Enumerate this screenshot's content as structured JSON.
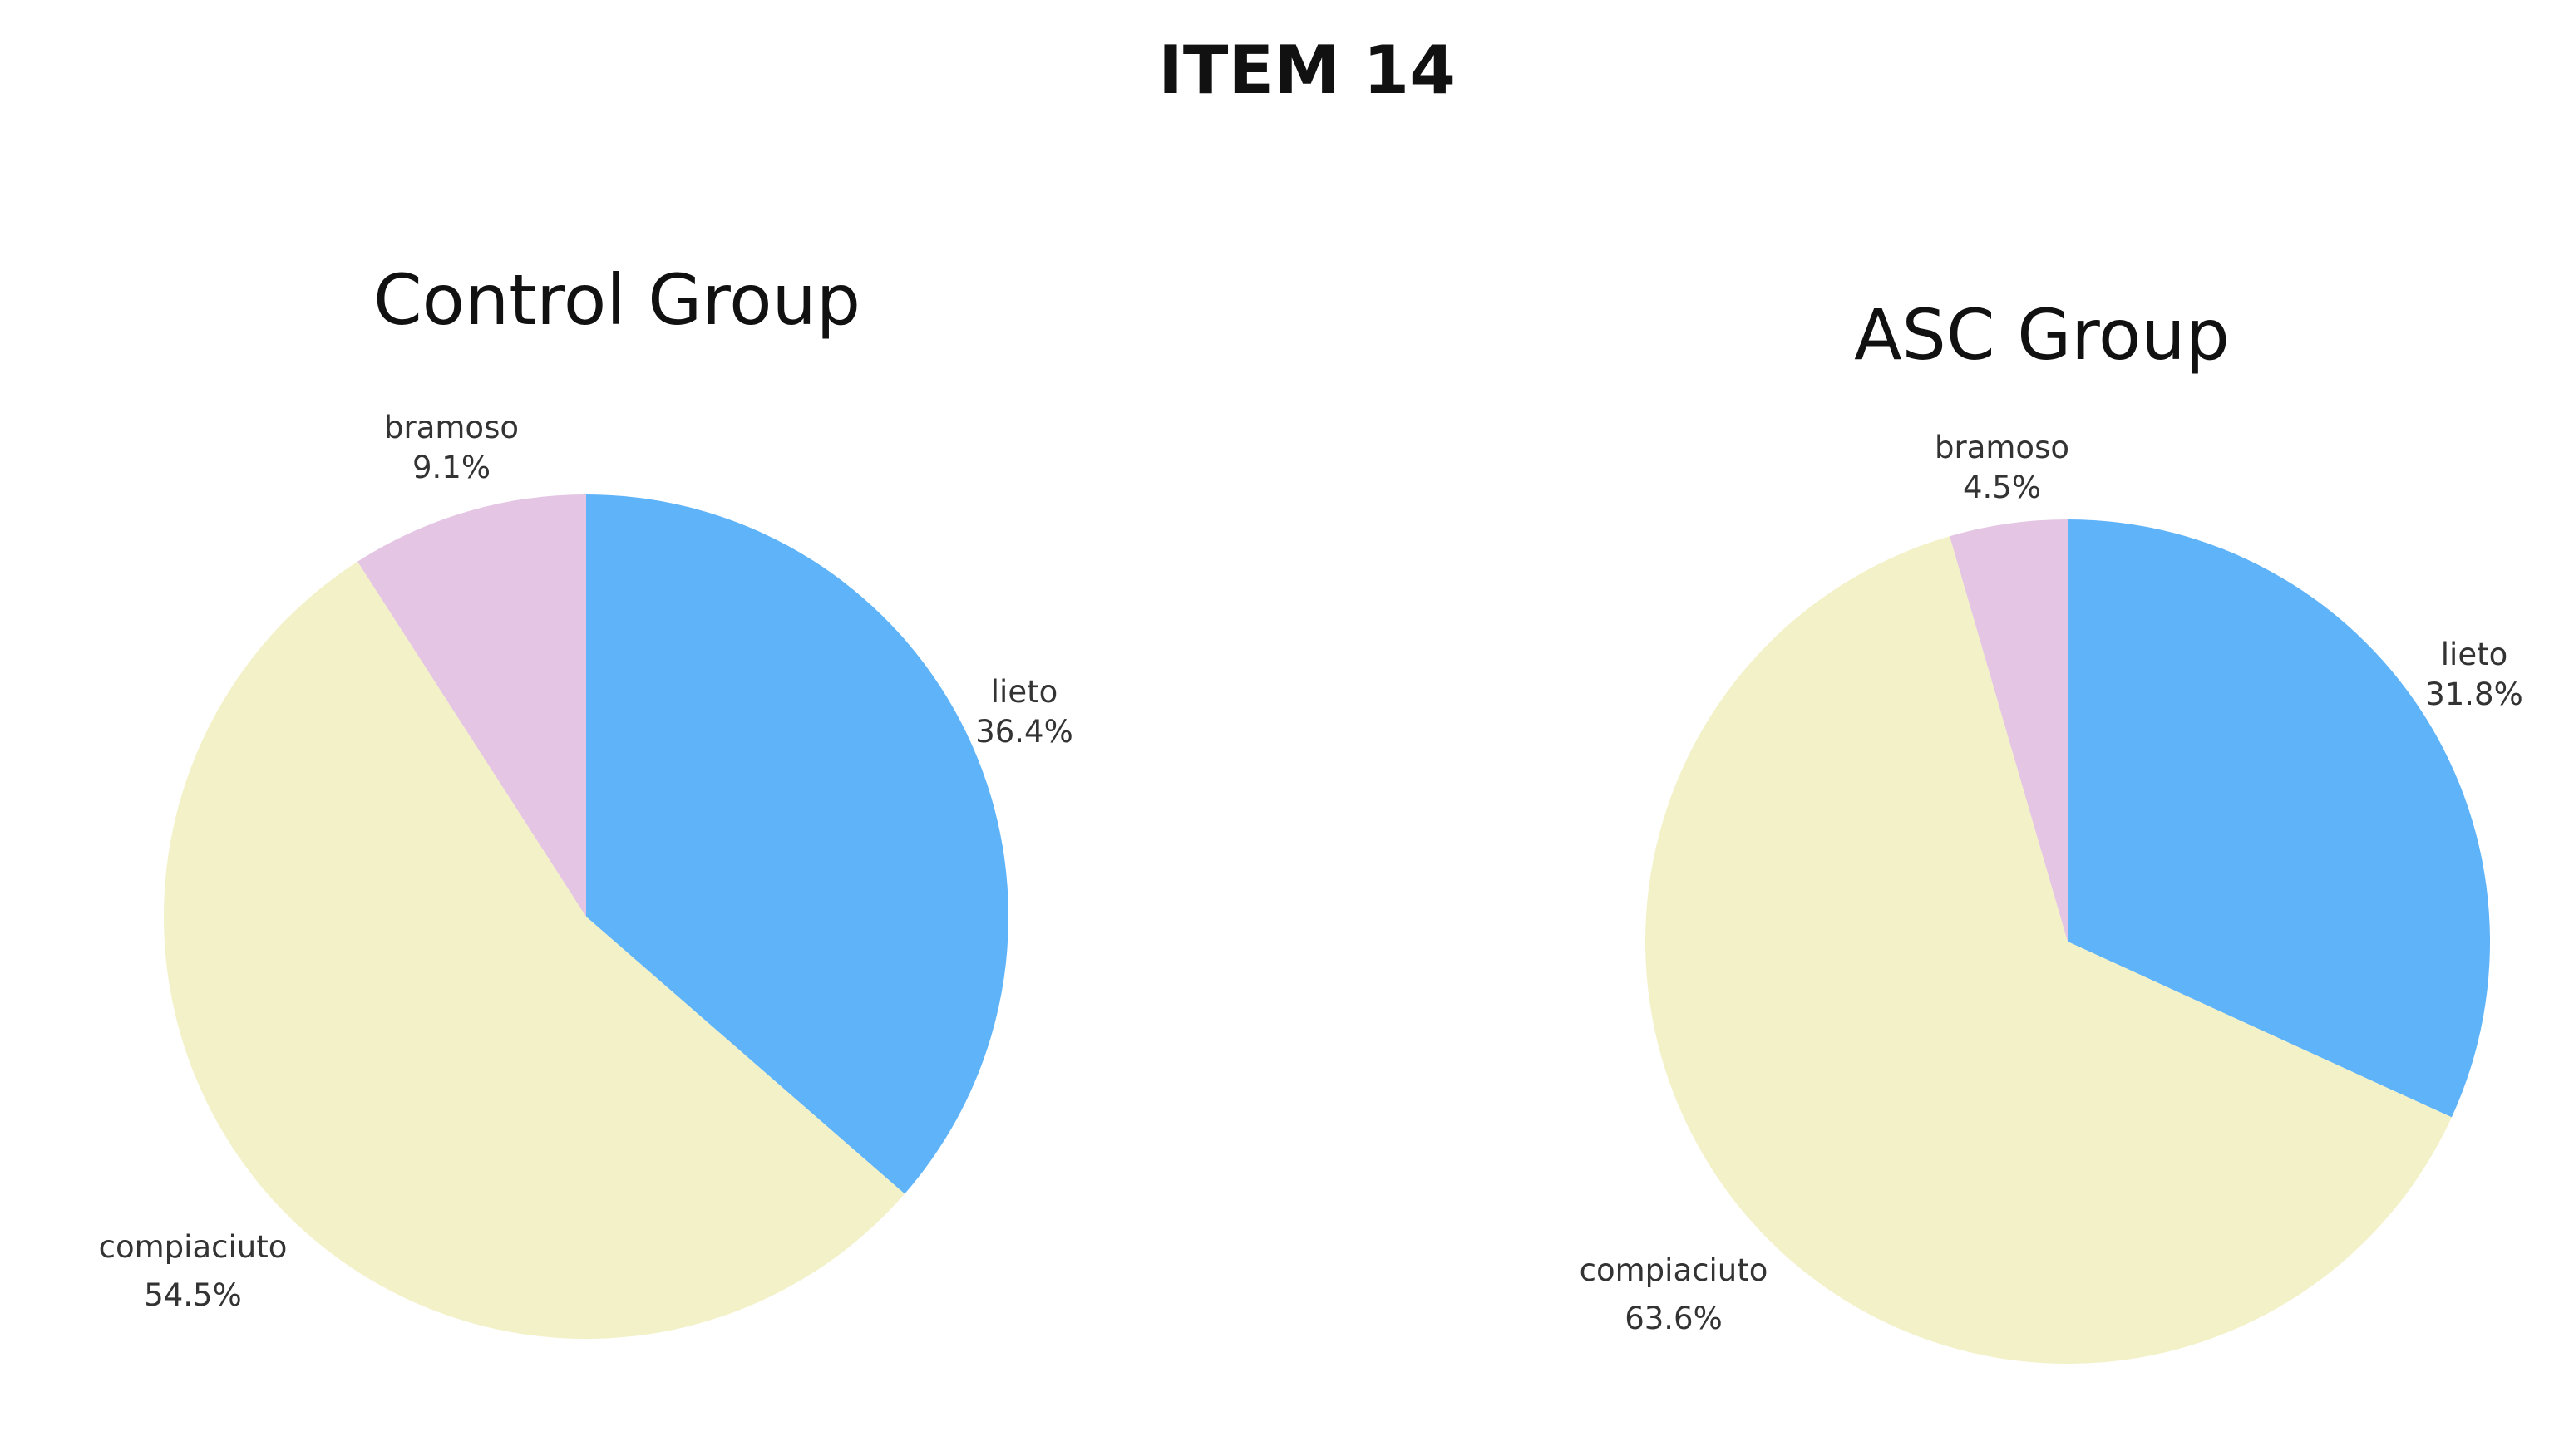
{
  "figure": {
    "title": "ITEM 14"
  },
  "chart_data": [
    {
      "type": "pie",
      "title": "Control Group",
      "slices": [
        {
          "label": "lieto",
          "value": 36.4,
          "display": "36.4%",
          "color": "#5fb3f9"
        },
        {
          "label": "compiaciuto",
          "value": 54.5,
          "display": "54.5%",
          "color": "#f3f1c8"
        },
        {
          "label": "bramoso",
          "value": 9.1,
          "display": "9.1%",
          "color": "#e4c5e3"
        }
      ],
      "start_angle_deg": 0,
      "direction": "clockwise",
      "legend": "none"
    },
    {
      "type": "pie",
      "title": "ASC Group",
      "slices": [
        {
          "label": "lieto",
          "value": 31.8,
          "display": "31.8%",
          "color": "#5fb3f9"
        },
        {
          "label": "compiaciuto",
          "value": 63.6,
          "display": "63.6%",
          "color": "#f3f1c8"
        },
        {
          "label": "bramoso",
          "value": 4.5,
          "display": "4.5%",
          "color": "#e4c5e3"
        }
      ],
      "start_angle_deg": 0,
      "direction": "clockwise",
      "legend": "none"
    }
  ]
}
